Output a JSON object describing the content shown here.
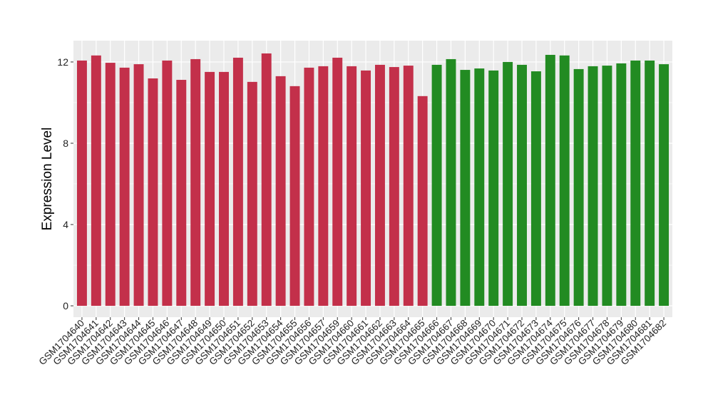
{
  "chart_data": {
    "type": "bar",
    "title": "",
    "xlabel": "",
    "ylabel": "Expression Level",
    "ylim": [
      -0.56,
      13.05
    ],
    "yticks": [
      0,
      4,
      8,
      12
    ],
    "grid": true,
    "legend": "none",
    "colors": {
      "group1": "#C3304A",
      "group2": "#228B22",
      "panel": "#EBEBEB",
      "grid": "#FFFFFF"
    },
    "categories": [
      "GSM1704640",
      "GSM1704641",
      "GSM1704642",
      "GSM1704643",
      "GSM1704644",
      "GSM1704645",
      "GSM1704646",
      "GSM1704647",
      "GSM1704648",
      "GSM1704649",
      "GSM1704650",
      "GSM1704651",
      "GSM1704652",
      "GSM1704653",
      "GSM1704654",
      "GSM1704655",
      "GSM1704656",
      "GSM1704657",
      "GSM1704659",
      "GSM1704660",
      "GSM1704661",
      "GSM1704662",
      "GSM1704663",
      "GSM1704664",
      "GSM1704665",
      "GSM1704666",
      "GSM1704667",
      "GSM1704668",
      "GSM1704669",
      "GSM1704670",
      "GSM1704671",
      "GSM1704672",
      "GSM1704673",
      "GSM1704674",
      "GSM1704675",
      "GSM1704676",
      "GSM1704677",
      "GSM1704678",
      "GSM1704679",
      "GSM1704680",
      "GSM1704681",
      "GSM1704682"
    ],
    "values": [
      12.07,
      12.32,
      11.96,
      11.72,
      11.89,
      11.19,
      12.07,
      11.12,
      12.14,
      11.51,
      11.51,
      12.21,
      11.02,
      12.42,
      11.3,
      10.81,
      11.72,
      11.79,
      12.21,
      11.79,
      11.58,
      11.86,
      11.75,
      11.82,
      10.32,
      11.86,
      12.14,
      11.61,
      11.68,
      11.58,
      12.0,
      11.86,
      11.54,
      12.35,
      12.32,
      11.65,
      11.79,
      11.82,
      11.93,
      12.07,
      12.07,
      11.89
    ],
    "groups": [
      "group1",
      "group1",
      "group1",
      "group1",
      "group1",
      "group1",
      "group1",
      "group1",
      "group1",
      "group1",
      "group1",
      "group1",
      "group1",
      "group1",
      "group1",
      "group1",
      "group1",
      "group1",
      "group1",
      "group1",
      "group1",
      "group1",
      "group1",
      "group1",
      "group1",
      "group2",
      "group2",
      "group2",
      "group2",
      "group2",
      "group2",
      "group2",
      "group2",
      "group2",
      "group2",
      "group2",
      "group2",
      "group2",
      "group2",
      "group2",
      "group2",
      "group2"
    ]
  }
}
